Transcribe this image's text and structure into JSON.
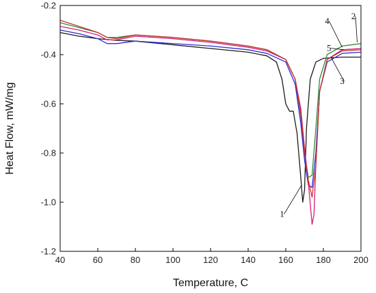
{
  "chart_data": {
    "type": "line",
    "title": "",
    "xlabel": "Temperature, C",
    "ylabel": "Heat Flow, mW/mg",
    "xlim": [
      40,
      200
    ],
    "ylim": [
      -1.2,
      -0.2
    ],
    "xticks": [
      "40",
      "60",
      "80",
      "100",
      "120",
      "140",
      "160",
      "180",
      "200"
    ],
    "yticks": [
      "-0.2",
      "-0.4",
      "-0.6",
      "-0.8",
      "-1.0",
      "-1.2"
    ],
    "grid": false,
    "legend": "none",
    "series": [
      {
        "name": "1",
        "color": "#1a1a1a",
        "points": [
          [
            40,
            -0.31
          ],
          [
            50,
            -0.325
          ],
          [
            60,
            -0.335
          ],
          [
            70,
            -0.342
          ],
          [
            80,
            -0.345
          ],
          [
            100,
            -0.36
          ],
          [
            120,
            -0.375
          ],
          [
            140,
            -0.39
          ],
          [
            150,
            -0.405
          ],
          [
            155,
            -0.43
          ],
          [
            158,
            -0.5
          ],
          [
            160,
            -0.6
          ],
          [
            162,
            -0.63
          ],
          [
            164,
            -0.63
          ],
          [
            166,
            -0.72
          ],
          [
            168,
            -0.9
          ],
          [
            169,
            -1.0
          ],
          [
            170,
            -0.95
          ],
          [
            171,
            -0.7
          ],
          [
            173,
            -0.5
          ],
          [
            176,
            -0.43
          ],
          [
            180,
            -0.415
          ],
          [
            190,
            -0.41
          ],
          [
            200,
            -0.41
          ]
        ]
      },
      {
        "name": "2",
        "color": "#2e8b3e",
        "points": [
          [
            40,
            -0.27
          ],
          [
            50,
            -0.29
          ],
          [
            60,
            -0.31
          ],
          [
            65,
            -0.33
          ],
          [
            70,
            -0.33
          ],
          [
            80,
            -0.32
          ],
          [
            100,
            -0.33
          ],
          [
            120,
            -0.345
          ],
          [
            140,
            -0.365
          ],
          [
            150,
            -0.38
          ],
          [
            160,
            -0.42
          ],
          [
            165,
            -0.5
          ],
          [
            168,
            -0.65
          ],
          [
            170,
            -0.8
          ],
          [
            172,
            -0.9
          ],
          [
            174,
            -0.89
          ],
          [
            176,
            -0.7
          ],
          [
            178,
            -0.5
          ],
          [
            182,
            -0.4
          ],
          [
            190,
            -0.365
          ],
          [
            200,
            -0.355
          ]
        ]
      },
      {
        "name": "3",
        "color": "#2b2bd0",
        "points": [
          [
            40,
            -0.3
          ],
          [
            50,
            -0.315
          ],
          [
            60,
            -0.335
          ],
          [
            65,
            -0.355
          ],
          [
            70,
            -0.355
          ],
          [
            80,
            -0.345
          ],
          [
            100,
            -0.355
          ],
          [
            120,
            -0.365
          ],
          [
            140,
            -0.38
          ],
          [
            150,
            -0.395
          ],
          [
            160,
            -0.43
          ],
          [
            165,
            -0.52
          ],
          [
            168,
            -0.68
          ],
          [
            170,
            -0.83
          ],
          [
            172,
            -0.93
          ],
          [
            174,
            -0.94
          ],
          [
            176,
            -0.8
          ],
          [
            178,
            -0.55
          ],
          [
            182,
            -0.43
          ],
          [
            190,
            -0.395
          ],
          [
            200,
            -0.39
          ]
        ]
      },
      {
        "name": "4",
        "color": "#d81b7a",
        "points": [
          [
            40,
            -0.285
          ],
          [
            50,
            -0.3
          ],
          [
            60,
            -0.32
          ],
          [
            65,
            -0.34
          ],
          [
            70,
            -0.34
          ],
          [
            80,
            -0.325
          ],
          [
            100,
            -0.335
          ],
          [
            120,
            -0.35
          ],
          [
            140,
            -0.37
          ],
          [
            150,
            -0.385
          ],
          [
            160,
            -0.42
          ],
          [
            165,
            -0.5
          ],
          [
            168,
            -0.62
          ],
          [
            170,
            -0.78
          ],
          [
            172,
            -0.92
          ],
          [
            174,
            -1.09
          ],
          [
            175,
            -1.05
          ],
          [
            176,
            -0.85
          ],
          [
            178,
            -0.55
          ],
          [
            182,
            -0.42
          ],
          [
            190,
            -0.38
          ],
          [
            200,
            -0.375
          ]
        ]
      },
      {
        "name": "5",
        "color": "#c0352b",
        "points": [
          [
            40,
            -0.26
          ],
          [
            50,
            -0.285
          ],
          [
            60,
            -0.31
          ],
          [
            65,
            -0.33
          ],
          [
            70,
            -0.335
          ],
          [
            80,
            -0.32
          ],
          [
            100,
            -0.33
          ],
          [
            120,
            -0.345
          ],
          [
            140,
            -0.365
          ],
          [
            150,
            -0.38
          ],
          [
            160,
            -0.42
          ],
          [
            165,
            -0.5
          ],
          [
            168,
            -0.64
          ],
          [
            170,
            -0.8
          ],
          [
            172,
            -0.91
          ],
          [
            174,
            -0.98
          ],
          [
            176,
            -0.85
          ],
          [
            178,
            -0.55
          ],
          [
            182,
            -0.42
          ],
          [
            190,
            -0.385
          ],
          [
            200,
            -0.38
          ]
        ]
      }
    ],
    "annotations": [
      {
        "text": "1",
        "x": 158,
        "y": -1.06,
        "target": [
          168.5,
          -0.93
        ]
      },
      {
        "text": "2",
        "x": 196,
        "y": -0.255,
        "target": [
          198,
          -0.35
        ]
      },
      {
        "text": "3",
        "x": 190,
        "y": -0.52,
        "target": [
          184,
          -0.41
        ]
      },
      {
        "text": "4",
        "x": 182,
        "y": -0.275,
        "target": [
          190,
          -0.37
        ]
      },
      {
        "text": "5",
        "x": 183,
        "y": -0.385,
        "target": [
          191,
          -0.38
        ]
      }
    ]
  }
}
